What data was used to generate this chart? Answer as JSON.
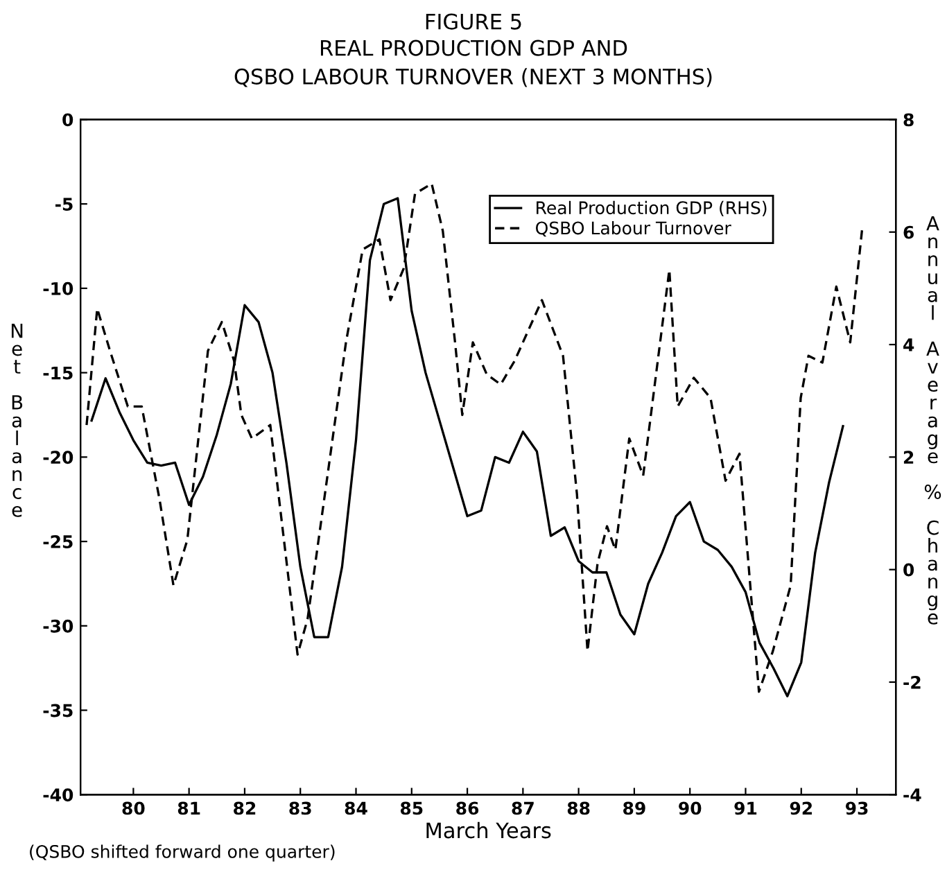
{
  "chart_data": {
    "type": "line",
    "title": "FIGURE 5",
    "subtitle": "REAL PRODUCTION GDP AND\nQSBO LABOUR TURNOVER (NEXT 3 MONTHS)",
    "xlabel": "March Years",
    "ylabel": "Net Balance",
    "y2label": "Annual Average % Change",
    "annotations": [
      "(QSBO shifted forward one quarter)"
    ],
    "xlim": [
      79.05,
      93.7
    ],
    "xticks": [
      {
        "value": 80,
        "label": "80"
      },
      {
        "value": 81,
        "label": "81"
      },
      {
        "value": 82,
        "label": "82"
      },
      {
        "value": 83,
        "label": "83"
      },
      {
        "value": 84,
        "label": "84"
      },
      {
        "value": 85,
        "label": "85"
      },
      {
        "value": 86,
        "label": "86"
      },
      {
        "value": 87,
        "label": "87"
      },
      {
        "value": 88,
        "label": "88"
      },
      {
        "value": 89,
        "label": "89"
      },
      {
        "value": 90,
        "label": "90"
      },
      {
        "value": 91,
        "label": "91"
      },
      {
        "value": 92,
        "label": "92"
      },
      {
        "value": 93,
        "label": "93"
      }
    ],
    "ylim": [
      -40,
      0
    ],
    "yticks": [
      -40,
      -35,
      -30,
      -25,
      -20,
      -15,
      -10,
      -5,
      0
    ],
    "y2lim": [
      -4,
      8
    ],
    "y2ticks": [
      -4,
      -2,
      0,
      2,
      4,
      6,
      8
    ],
    "grid": false,
    "legend": "top right",
    "series": [
      {
        "name": "Real Production GDP (RHS)",
        "color": "#000000",
        "line_style": "solid",
        "axis": "y2",
        "x": [
          79.25,
          79.5,
          79.75,
          80.0,
          80.25,
          80.5,
          80.75,
          81.0,
          81.25,
          81.5,
          81.75,
          82.0,
          82.25,
          82.5,
          82.75,
          83.0,
          83.25,
          83.5,
          83.75,
          84.0,
          84.25,
          84.5,
          84.75,
          85.0,
          85.25,
          85.5,
          85.75,
          86.0,
          86.25,
          86.5,
          86.75,
          87.0,
          87.25,
          87.5,
          87.75,
          88.0,
          88.25,
          88.5,
          88.75,
          89.0,
          89.25,
          89.5,
          89.75,
          90.0,
          90.25,
          90.5,
          90.75,
          91.0,
          91.25,
          91.5,
          91.75,
          92.0,
          92.25,
          92.5,
          92.75
        ],
        "values": [
          2.65,
          3.4,
          2.8,
          2.3,
          1.9,
          1.85,
          1.9,
          1.15,
          1.65,
          2.4,
          3.3,
          4.7,
          4.4,
          3.5,
          1.9,
          0.05,
          -1.2,
          -1.2,
          0.05,
          2.3,
          5.5,
          6.5,
          6.6,
          4.6,
          3.5,
          2.65,
          1.8,
          0.95,
          1.05,
          2.0,
          1.9,
          2.45,
          2.1,
          0.6,
          0.75,
          0.15,
          -0.05,
          -0.05,
          -0.8,
          -1.15,
          -0.25,
          0.3,
          0.95,
          1.2,
          0.5,
          0.35,
          0.05,
          -0.4,
          -1.3,
          -1.75,
          -2.25,
          -1.65,
          0.3,
          1.55,
          2.55
        ]
      },
      {
        "name": "QSBO Labour Turnover",
        "color": "#000000",
        "line_style": "dashed",
        "axis": "y",
        "x": [
          79.16,
          79.35,
          79.58,
          79.9,
          80.15,
          80.47,
          80.72,
          80.97,
          81.34,
          81.59,
          81.81,
          81.94,
          82.13,
          82.46,
          82.95,
          83.13,
          83.82,
          84.12,
          84.42,
          84.62,
          84.86,
          85.06,
          85.36,
          85.56,
          85.78,
          85.91,
          86.1,
          86.35,
          86.6,
          86.85,
          87.34,
          87.72,
          87.97,
          88.16,
          88.34,
          88.51,
          88.66,
          88.91,
          89.16,
          89.63,
          89.78,
          90.07,
          90.37,
          90.64,
          90.89,
          91.24,
          91.49,
          91.81,
          91.99,
          92.13,
          92.38,
          92.63,
          92.88,
          93.1
        ],
        "values": [
          -18.1,
          -11.2,
          -13.7,
          -17.0,
          -17.0,
          -22.5,
          -27.6,
          -24.9,
          -13.7,
          -12.0,
          -14.3,
          -17.5,
          -18.9,
          -18.1,
          -31.7,
          -29.6,
          -13.2,
          -7.7,
          -7.1,
          -10.7,
          -8.8,
          -4.4,
          -3.8,
          -6.6,
          -13.2,
          -17.5,
          -13.2,
          -15.1,
          -15.7,
          -14.3,
          -10.7,
          -14.0,
          -22.2,
          -31.5,
          -26.3,
          -24.1,
          -25.5,
          -18.9,
          -21.1,
          -8.9,
          -17.0,
          -15.3,
          -16.5,
          -21.4,
          -19.8,
          -33.9,
          -31.5,
          -27.6,
          -16.5,
          -14.0,
          -14.4,
          -9.9,
          -13.2,
          -6.3
        ]
      }
    ]
  }
}
